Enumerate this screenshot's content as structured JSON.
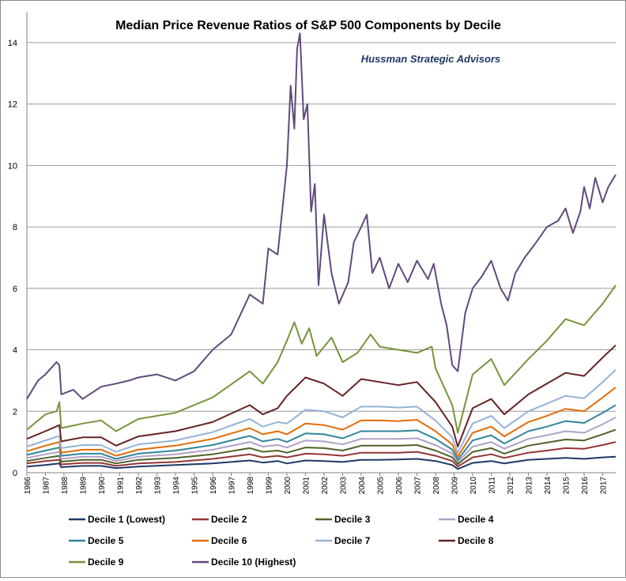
{
  "chart_data": {
    "type": "line",
    "title": "Median Price Revenue Ratios of S&P 500 Components by Decile",
    "subtitle": "Hussman Strategic Advisors",
    "xlabel": "",
    "ylabel": "",
    "xlim": [
      1986,
      2017.7
    ],
    "ylim": [
      0,
      15
    ],
    "yticks": [
      0,
      2,
      4,
      6,
      8,
      10,
      12,
      14
    ],
    "xticks": [
      "1986",
      "1987",
      "1988",
      "1989",
      "1990",
      "1991",
      "1992",
      "1993",
      "1994",
      "1995",
      "1996",
      "1997",
      "1998",
      "1999",
      "2000",
      "2001",
      "2002",
      "2003",
      "2004",
      "2005",
      "2006",
      "2007",
      "2008",
      "2009",
      "2010",
      "2011",
      "2012",
      "2013",
      "2014",
      "2015",
      "2016",
      "2017"
    ],
    "grid": "horizontal",
    "legend_position": "bottom",
    "series": [
      {
        "name": "Decile 1 (Lowest)",
        "color": "#1f3864",
        "x": [
          1986,
          1987,
          1987.75,
          1987.85,
          1989,
          1990,
          1990.8,
          1992,
          1994,
          1996,
          1998,
          1998.7,
          1999.5,
          2000,
          2001,
          2002,
          2003,
          2004,
          2005,
          2006,
          2007,
          2008,
          2008.9,
          2009.2,
          2010,
          2011,
          2011.7,
          2013,
          2014,
          2015,
          2016,
          2017,
          2017.7
        ],
        "values": [
          0.2,
          0.25,
          0.3,
          0.18,
          0.22,
          0.22,
          0.15,
          0.2,
          0.25,
          0.3,
          0.4,
          0.33,
          0.38,
          0.3,
          0.4,
          0.38,
          0.35,
          0.42,
          0.42,
          0.43,
          0.45,
          0.38,
          0.25,
          0.12,
          0.32,
          0.38,
          0.3,
          0.42,
          0.45,
          0.48,
          0.45,
          0.5,
          0.52
        ]
      },
      {
        "name": "Decile 2",
        "color": "#943634",
        "x": [
          1986,
          1987,
          1987.75,
          1987.85,
          1989,
          1990,
          1990.8,
          1992,
          1994,
          1996,
          1998,
          1998.7,
          1999.5,
          2000,
          2001,
          2002,
          2003,
          2004,
          2005,
          2006,
          2007,
          2008,
          2008.9,
          2009.2,
          2010,
          2011,
          2011.7,
          2013,
          2014,
          2015,
          2016,
          2017,
          2017.7
        ],
        "values": [
          0.3,
          0.38,
          0.42,
          0.27,
          0.32,
          0.32,
          0.22,
          0.3,
          0.35,
          0.45,
          0.6,
          0.5,
          0.55,
          0.5,
          0.62,
          0.6,
          0.55,
          0.65,
          0.65,
          0.65,
          0.68,
          0.55,
          0.38,
          0.2,
          0.5,
          0.6,
          0.48,
          0.65,
          0.72,
          0.8,
          0.78,
          0.9,
          1.0
        ]
      },
      {
        "name": "Decile 3",
        "color": "#4f6228",
        "x": [
          1986,
          1987,
          1987.75,
          1987.85,
          1989,
          1990,
          1990.8,
          1992,
          1994,
          1996,
          1998,
          1998.7,
          1999.5,
          2000,
          2001,
          2002,
          2003,
          2004,
          2005,
          2006,
          2007,
          2008,
          2008.9,
          2009.2,
          2010,
          2011,
          2011.7,
          2013,
          2014,
          2015,
          2016,
          2017,
          2017.7
        ],
        "values": [
          0.38,
          0.48,
          0.55,
          0.36,
          0.42,
          0.42,
          0.3,
          0.42,
          0.48,
          0.6,
          0.8,
          0.68,
          0.72,
          0.65,
          0.82,
          0.8,
          0.72,
          0.88,
          0.88,
          0.88,
          0.9,
          0.72,
          0.5,
          0.28,
          0.68,
          0.8,
          0.62,
          0.88,
          0.98,
          1.08,
          1.05,
          1.25,
          1.4
        ]
      },
      {
        "name": "Decile 4",
        "color": "#b2a1c7",
        "x": [
          1986,
          1987,
          1987.75,
          1987.85,
          1989,
          1990,
          1990.8,
          1992,
          1994,
          1996,
          1998,
          1998.7,
          1999.5,
          2000,
          2001,
          2002,
          2003,
          2004,
          2005,
          2006,
          2007,
          2008,
          2008.9,
          2009.2,
          2010,
          2011,
          2011.7,
          2013,
          2014,
          2015,
          2016,
          2017,
          2017.7
        ],
        "values": [
          0.48,
          0.6,
          0.68,
          0.45,
          0.52,
          0.52,
          0.38,
          0.52,
          0.6,
          0.75,
          1.0,
          0.85,
          0.9,
          0.82,
          1.05,
          1.02,
          0.92,
          1.1,
          1.1,
          1.1,
          1.12,
          0.9,
          0.62,
          0.35,
          0.85,
          1.0,
          0.78,
          1.1,
          1.22,
          1.35,
          1.3,
          1.58,
          1.8
        ]
      },
      {
        "name": "Decile 5",
        "color": "#31859c",
        "x": [
          1986,
          1987,
          1987.75,
          1987.85,
          1989,
          1990,
          1990.8,
          1992,
          1994,
          1996,
          1998,
          1998.7,
          1999.5,
          2000,
          2001,
          2002,
          2003,
          2004,
          2005,
          2006,
          2007,
          2008,
          2008.9,
          2009.2,
          2010,
          2011,
          2011.7,
          2013,
          2014,
          2015,
          2016,
          2017,
          2017.7
        ],
        "values": [
          0.58,
          0.72,
          0.82,
          0.55,
          0.62,
          0.62,
          0.45,
          0.62,
          0.72,
          0.9,
          1.2,
          1.02,
          1.1,
          1.0,
          1.28,
          1.25,
          1.12,
          1.35,
          1.35,
          1.35,
          1.38,
          1.1,
          0.75,
          0.42,
          1.05,
          1.22,
          0.95,
          1.35,
          1.5,
          1.68,
          1.62,
          1.95,
          2.2
        ]
      },
      {
        "name": "Decile 6",
        "color": "#e36c09",
        "x": [
          1986,
          1987,
          1987.75,
          1987.85,
          1989,
          1990,
          1990.8,
          1992,
          1994,
          1996,
          1998,
          1998.7,
          1999.5,
          2000,
          2001,
          2002,
          2003,
          2004,
          2005,
          2006,
          2007,
          2008,
          2008.9,
          2009.2,
          2010,
          2011,
          2011.7,
          2013,
          2014,
          2015,
          2016,
          2017,
          2017.7
        ],
        "values": [
          0.7,
          0.88,
          1.0,
          0.65,
          0.75,
          0.75,
          0.55,
          0.75,
          0.88,
          1.1,
          1.45,
          1.25,
          1.35,
          1.25,
          1.6,
          1.55,
          1.4,
          1.7,
          1.7,
          1.68,
          1.72,
          1.35,
          0.92,
          0.52,
          1.3,
          1.5,
          1.18,
          1.65,
          1.85,
          2.08,
          2.0,
          2.45,
          2.78
        ]
      },
      {
        "name": "Decile 7",
        "color": "#95b3d7",
        "x": [
          1986,
          1987,
          1987.75,
          1987.85,
          1989,
          1990,
          1990.8,
          1992,
          1994,
          1996,
          1998,
          1998.7,
          1999.5,
          2000,
          2001,
          2002,
          2003,
          2004,
          2005,
          2006,
          2007,
          2008,
          2008.9,
          2009.2,
          2010,
          2011,
          2011.7,
          2013,
          2014,
          2015,
          2016,
          2017,
          2017.7
        ],
        "values": [
          0.85,
          1.05,
          1.2,
          0.8,
          0.9,
          0.9,
          0.68,
          0.92,
          1.05,
          1.32,
          1.75,
          1.5,
          1.65,
          1.6,
          2.05,
          2.0,
          1.8,
          2.15,
          2.15,
          2.12,
          2.15,
          1.7,
          1.15,
          0.65,
          1.6,
          1.85,
          1.45,
          2.0,
          2.25,
          2.5,
          2.42,
          2.95,
          3.35
        ]
      },
      {
        "name": "Decile 8",
        "color": "#632423",
        "x": [
          1986,
          1987,
          1987.75,
          1987.85,
          1989,
          1990,
          1990.8,
          1992,
          1994,
          1996,
          1998,
          1998.7,
          1999.5,
          2000,
          2001,
          2002,
          2003,
          2004,
          2005,
          2006,
          2007,
          2008,
          2008.9,
          2009.2,
          2010,
          2011,
          2011.7,
          2013,
          2014,
          2015,
          2016,
          2017,
          2017.7
        ],
        "values": [
          1.1,
          1.35,
          1.55,
          1.02,
          1.15,
          1.15,
          0.88,
          1.18,
          1.35,
          1.65,
          2.2,
          1.9,
          2.1,
          2.5,
          3.1,
          2.9,
          2.5,
          3.05,
          2.95,
          2.85,
          2.95,
          2.3,
          1.5,
          0.85,
          2.1,
          2.4,
          1.9,
          2.55,
          2.9,
          3.25,
          3.15,
          3.75,
          4.15
        ]
      },
      {
        "name": "Decile 9",
        "color": "#77933c",
        "x": [
          1986,
          1987,
          1987.6,
          1987.75,
          1987.85,
          1989,
          1990,
          1990.8,
          1992,
          1994,
          1996,
          1998,
          1998.7,
          1999.5,
          2000,
          2000.4,
          2000.8,
          2001.2,
          2001.6,
          2002.4,
          2003,
          2003.8,
          2004.5,
          2005,
          2006,
          2007,
          2007.8,
          2008,
          2008.9,
          2009.2,
          2010,
          2011,
          2011.7,
          2013,
          2014,
          2015,
          2016,
          2017,
          2017.7
        ],
        "values": [
          1.4,
          1.9,
          2.0,
          2.3,
          1.45,
          1.6,
          1.7,
          1.35,
          1.75,
          1.95,
          2.45,
          3.3,
          2.9,
          3.6,
          4.3,
          4.9,
          4.2,
          4.7,
          3.8,
          4.4,
          3.6,
          3.9,
          4.5,
          4.1,
          4.0,
          3.9,
          4.1,
          3.4,
          2.2,
          1.3,
          3.2,
          3.7,
          2.85,
          3.7,
          4.3,
          5.0,
          4.8,
          5.5,
          6.1
        ]
      },
      {
        "name": "Decile 10 (Highest)",
        "color": "#604a7b",
        "x": [
          1986,
          1986.6,
          1987,
          1987.6,
          1987.75,
          1987.85,
          1988.5,
          1989,
          1990,
          1990.8,
          1991.5,
          1992,
          1993,
          1994,
          1995,
          1996,
          1997,
          1998,
          1998.7,
          1999,
          1999.5,
          2000,
          2000.2,
          2000.4,
          2000.55,
          2000.7,
          2000.9,
          2001.1,
          2001.3,
          2001.5,
          2001.7,
          2002,
          2002.4,
          2002.8,
          2003.3,
          2003.6,
          2004,
          2004.3,
          2004.6,
          2005,
          2005.5,
          2006,
          2006.5,
          2007,
          2007.6,
          2007.9,
          2008.3,
          2008.6,
          2008.9,
          2009.2,
          2009.6,
          2010,
          2010.5,
          2011,
          2011.5,
          2011.9,
          2012.3,
          2012.8,
          2013.3,
          2014,
          2014.6,
          2015,
          2015.4,
          2015.8,
          2016,
          2016.3,
          2016.6,
          2017,
          2017.3,
          2017.7
        ],
        "values": [
          2.4,
          3.0,
          3.2,
          3.6,
          3.5,
          2.55,
          2.7,
          2.4,
          2.8,
          2.9,
          3.0,
          3.1,
          3.2,
          3.0,
          3.3,
          4.0,
          4.5,
          5.8,
          5.5,
          7.3,
          7.1,
          10.0,
          12.6,
          11.2,
          13.8,
          14.3,
          11.5,
          12.0,
          8.5,
          9.4,
          6.1,
          8.4,
          6.5,
          5.5,
          6.2,
          7.5,
          8.0,
          8.4,
          6.5,
          7.0,
          6.0,
          6.8,
          6.2,
          6.9,
          6.3,
          6.8,
          5.5,
          4.8,
          3.5,
          3.3,
          5.2,
          6.0,
          6.4,
          6.9,
          6.0,
          5.6,
          6.5,
          7.0,
          7.4,
          8.0,
          8.2,
          8.6,
          7.8,
          8.5,
          9.3,
          8.6,
          9.6,
          8.8,
          9.3,
          9.7
        ]
      }
    ]
  }
}
